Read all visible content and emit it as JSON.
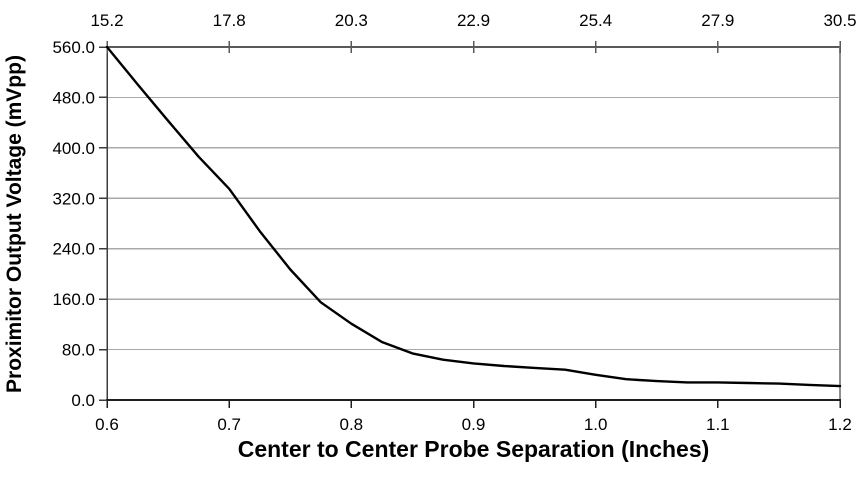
{
  "chart_data": {
    "type": "line",
    "title": "",
    "xlabel": "Center to Center Probe Separation (Inches)",
    "ylabel": "Proximitor Output Voltage (mVpp)",
    "xlim": [
      0.6,
      1.2
    ],
    "ylim": [
      0,
      560
    ],
    "grid": "horizontal gridlines on",
    "legend_position": "none",
    "x_tick_values": [
      0.6,
      0.7,
      0.8,
      0.9,
      1.0,
      1.1,
      1.2
    ],
    "x_bottom_tick_labels": [
      "0.6",
      "0.7",
      "0.8",
      "0.9",
      "1.0",
      "1.1",
      "1.2"
    ],
    "x_top_tick_labels": [
      "15.2",
      "17.8",
      "20.3",
      "22.9",
      "25.4",
      "27.9",
      "30.5"
    ],
    "y_tick_values": [
      0,
      80,
      160,
      240,
      320,
      400,
      480,
      560
    ],
    "y_tick_labels": [
      "0.0",
      "80.0",
      "160.0",
      "240.0",
      "320.0",
      "400.0",
      "480.0",
      "560.0"
    ],
    "series": [
      {
        "name": "Proximitor Output Voltage (mVpp)",
        "x": [
          0.6,
          0.625,
          0.65,
          0.675,
          0.7,
          0.725,
          0.75,
          0.775,
          0.8,
          0.825,
          0.85,
          0.875,
          0.9,
          0.925,
          0.95,
          0.975,
          1.0,
          1.025,
          1.05,
          1.075,
          1.1,
          1.125,
          1.15,
          1.175,
          1.2
        ],
        "y": [
          560,
          501,
          443,
          386,
          335,
          268,
          207,
          155,
          121,
          92,
          74,
          64,
          58,
          54,
          51,
          48,
          40,
          33,
          30,
          28,
          28,
          27,
          26,
          24,
          22
        ]
      }
    ],
    "colors": {
      "line": "#000000",
      "gridline": "#a9a9a9",
      "axis_top": "#5a5a5a",
      "axis_right": "#8f8f8f",
      "axis_bottom": "#1f1f1f",
      "axis_left": "#3c3c3c",
      "text": "#000000",
      "background": "#ffffff"
    }
  }
}
